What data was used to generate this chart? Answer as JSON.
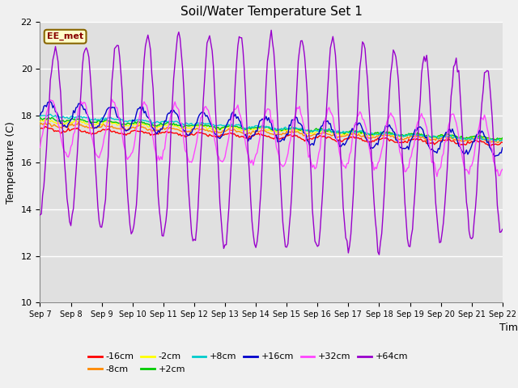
{
  "title": "Soil/Water Temperature Set 1",
  "xlabel": "Time",
  "ylabel": "Temperature (C)",
  "ylim": [
    10,
    22
  ],
  "xlim": [
    0,
    15
  ],
  "xtick_labels": [
    "Sep 7",
    "Sep 8",
    "Sep 9",
    "Sep 10",
    "Sep 11",
    "Sep 12",
    "Sep 13",
    "Sep 14",
    "Sep 15",
    "Sep 16",
    "Sep 17",
    "Sep 18",
    "Sep 19",
    "Sep 20",
    "Sep 21",
    "Sep 22"
  ],
  "ytick_values": [
    10,
    12,
    14,
    16,
    18,
    20,
    22
  ],
  "series_labels": [
    "-16cm",
    "-8cm",
    "-2cm",
    "+2cm",
    "+8cm",
    "+16cm",
    "+32cm",
    "+64cm"
  ],
  "series_colors": [
    "#ff0000",
    "#ff8800",
    "#ffff00",
    "#00cc00",
    "#00cccc",
    "#0000cc",
    "#ff44ff",
    "#9900cc"
  ],
  "annotation_text": "EE_met",
  "annotation_bbox_facecolor": "#ffffcc",
  "annotation_bbox_edgecolor": "#886600",
  "plot_bg_color": "#e0e0e0",
  "fig_bg_color": "#f0f0f0",
  "grid_color": "#ffffff",
  "n_points": 361
}
